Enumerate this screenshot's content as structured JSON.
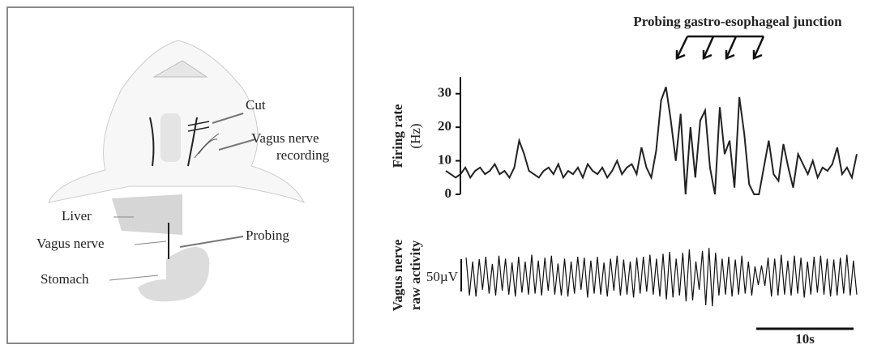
{
  "diagram": {
    "labels": {
      "cut": "Cut",
      "recording": [
        "Vagus nerve",
        "recording"
      ],
      "liver": "Liver",
      "vagus": "Vagus nerve",
      "probing": "Probing",
      "stomach": "Stomach"
    }
  },
  "chart_data": [
    {
      "type": "line",
      "annotation": "Probing gastro-esophageal junction",
      "y_label": [
        "Firing rate",
        "(Hz)"
      ],
      "color": "#222222",
      "values": [
        7,
        6,
        5,
        6,
        8,
        5,
        7,
        8,
        6,
        7,
        9,
        6,
        7,
        5,
        8,
        16,
        12,
        7,
        6,
        5,
        7,
        8,
        6,
        9,
        5,
        7,
        6,
        8,
        5,
        9,
        7,
        6,
        8,
        5,
        7,
        10,
        6,
        8,
        9,
        6,
        14,
        8,
        5,
        13,
        28,
        32,
        22,
        10,
        24,
        0,
        20,
        5,
        22,
        25,
        8,
        0,
        26,
        12,
        16,
        2,
        29,
        18,
        3,
        0,
        0,
        8,
        16,
        6,
        4,
        15,
        8,
        2,
        12,
        9,
        6,
        10,
        5,
        8,
        7,
        9,
        14,
        6,
        8,
        5,
        12
      ],
      "ylim": [
        0,
        35
      ],
      "yticks": [
        0,
        10,
        20,
        30
      ]
    },
    {
      "type": "trace",
      "y_label": [
        "Vagus nerve",
        "raw activity"
      ],
      "scale_labels": [
        "50µV",
        "10s"
      ],
      "color": "#111111",
      "values": [
        38,
        -40,
        30,
        -42,
        35,
        -28,
        40,
        -36,
        25,
        -40,
        42,
        -30,
        36,
        -38,
        28,
        -42,
        40,
        -34,
        30,
        -38,
        44,
        -36,
        32,
        -40,
        38,
        -30,
        42,
        -38,
        26,
        -40,
        36,
        -42,
        30,
        -36,
        40,
        -28,
        38,
        -44,
        32,
        -36,
        40,
        -38,
        28,
        -42,
        36,
        -30,
        42,
        -40,
        34,
        -38,
        30,
        -44,
        38,
        -36,
        40,
        -32,
        44,
        -38,
        36,
        -42,
        46,
        -48,
        50,
        -44,
        36,
        -40,
        48,
        -52,
        55,
        -50,
        30,
        -28,
        52,
        -60,
        58,
        -62,
        48,
        -40,
        36,
        -38,
        40,
        -42,
        34,
        -38,
        42,
        -36,
        30,
        -40,
        20,
        -18,
        22,
        -20,
        38,
        -42,
        36,
        -40,
        44,
        -38,
        32,
        -40,
        42,
        -36,
        38,
        -44,
        30,
        -38,
        40,
        -34,
        42,
        -38,
        36,
        -42,
        34,
        -40,
        38,
        -36,
        44,
        -40,
        32,
        -38
      ]
    }
  ]
}
